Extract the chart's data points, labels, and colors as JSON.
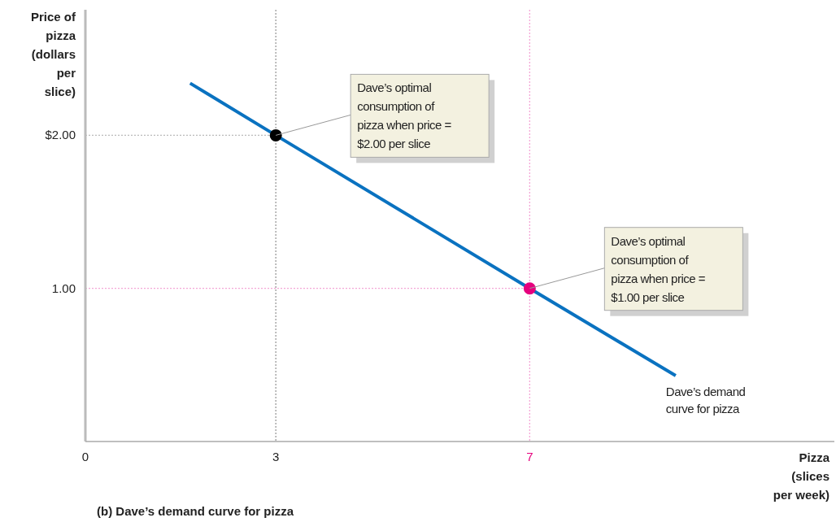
{
  "chart_data": {
    "type": "line",
    "title": "(b) Dave’s demand curve for pizza",
    "xlabel": "Pizza (slices per week)",
    "ylabel": "Price of pizza (dollars per slice)",
    "xlim": [
      0,
      11.8
    ],
    "ylim": [
      0,
      2.82
    ],
    "xticks": [
      0,
      3,
      7
    ],
    "yticks": [
      {
        "value": 1,
        "label": "1.00"
      },
      {
        "value": 2,
        "label": "$2.00"
      }
    ],
    "grid": false,
    "series": [
      {
        "color": "#0a72c0",
        "x": [
          1.65,
          3,
          7,
          9.3
        ],
        "values": [
          2.34,
          2,
          1,
          0.43
        ]
      },
      {
        "type": "scatter",
        "marker": "circle",
        "x": [
          3,
          7
        ],
        "values": [
          2,
          1
        ],
        "colors": [
          "#000000",
          "#e6007e"
        ]
      }
    ],
    "ref_lines": [
      {
        "axis": "x",
        "value": 3,
        "color": "#999999",
        "line_style": "dotted"
      },
      {
        "axis": "y",
        "value": 2,
        "color": "#bbbbbb",
        "line_style": "dotted"
      },
      {
        "axis": "x",
        "value": 7,
        "color": "#f4a6d6",
        "line_style": "dotted"
      },
      {
        "axis": "y",
        "value": 1,
        "color": "#f4a6d6",
        "line_style": "dotted"
      }
    ],
    "annotations": [
      {
        "text": "Dave’s optimal consumption of pizza when price = $2.00 per slice",
        "x": 3,
        "y": 2
      },
      {
        "text": "Dave’s optimal consumption of pizza when price = $1.00 per slice",
        "x": 7,
        "y": 1
      },
      {
        "text": "Dave’s demand curve for pizza",
        "x": 9.3,
        "y": 0.43
      }
    ]
  }
}
